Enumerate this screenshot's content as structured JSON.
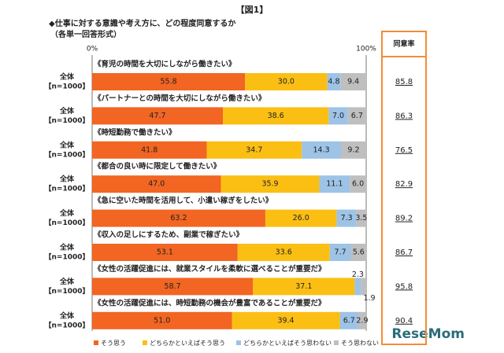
{
  "chart_data": {
    "type": "stacked_bar_horizontal",
    "title": "【図1】",
    "subtitle": "◆仕事に対する意識や考え方に、どの程度同意するか",
    "note": "（各単一回答形式）",
    "categories": [
      "《育児の時間を大切にしながら働きたい》",
      "《パートナーとの時間を大切にしながら働きたい》",
      "《時短勤務で働きたい》",
      "《都合の良い時に限定して働きたい》",
      "《急に空いた時間を活用して、小遣い稼ぎをしたい》",
      "《収入の足しにするため、副業で稼ぎたい》",
      "《女性の活躍促進には、就業スタイルを柔軟に選べることが重要だ》",
      "《女性の活躍促進には、時短勤務の機会が豊富であることが重要だ》"
    ],
    "row_group": [
      "全体",
      "全体",
      "全体",
      "全体",
      "全体",
      "全体",
      "全体",
      "全体"
    ],
    "row_n": [
      "【n=1000】",
      "【n=1000】",
      "【n=1000】",
      "【n=1000】",
      "【n=1000】",
      "【n=1000】",
      "【n=1000】",
      "【n=1000】"
    ],
    "series": [
      {
        "name": "そう思う",
        "color": "#f26522",
        "values": [
          55.8,
          47.7,
          41.8,
          47,
          63.2,
          53.1,
          58.7,
          51
        ],
        "value_labels": [
          "55.8",
          "47.7",
          "41.8",
          "47.0",
          "63.2",
          "53.1",
          "58.7",
          "51.0"
        ]
      },
      {
        "name": "どちらかといえばそう思う",
        "color": "#fbbf14",
        "values": [
          30,
          38.6,
          34.7,
          35.9,
          26,
          33.6,
          37.1,
          39.4
        ],
        "value_labels": [
          "30.0",
          "38.6",
          "34.7",
          "35.9",
          "26.0",
          "33.6",
          "37.1",
          "39.4"
        ]
      },
      {
        "name": "どちらかといえばそう思わない",
        "color": "#9dc3e6",
        "values": [
          4.8,
          7,
          14.3,
          11.1,
          7.3,
          7.7,
          2.3,
          6.7
        ],
        "value_labels": [
          "4.8",
          "7.0",
          "14.3",
          "11.1",
          "7.3",
          "7.7",
          "2.3",
          "6.7"
        ]
      },
      {
        "name": "そう思わない",
        "color": "#bfbfbf",
        "values": [
          9.4,
          6.7,
          9.2,
          6,
          3.5,
          5.6,
          1.9,
          2.9
        ],
        "value_labels": [
          "9.4",
          "6.7",
          "9.2",
          "6.0",
          "3.5",
          "5.6",
          "1.9",
          "2.9"
        ]
      }
    ],
    "agree_rate": {
      "name": "同意率",
      "color": "#f28c38",
      "values": [
        85.8,
        86.3,
        76.5,
        82.9,
        89.2,
        86.7,
        95.8,
        90.4
      ]
    },
    "xlim": [
      0,
      100
    ],
    "xticks": [
      {
        "value": 0,
        "label": "0%"
      },
      {
        "value": 100,
        "label": "100%"
      }
    ],
    "watermark": "ReseMom"
  }
}
